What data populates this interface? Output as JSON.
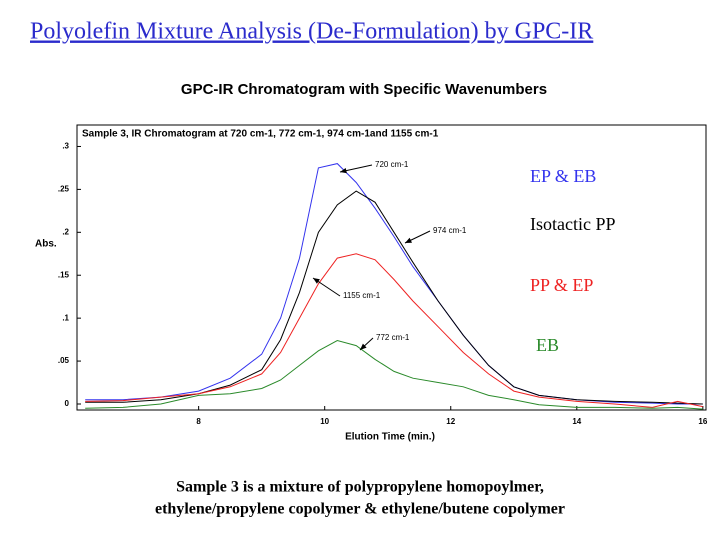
{
  "slide_title": "Polyolefin Mixture Analysis (De-Formulation) by GPC-IR",
  "caption": [
    "Sample 3 is a mixture of polypropylene homopoylmer,",
    "ethylene/propylene copolymer & ethylene/butene copolymer"
  ],
  "chart_data": {
    "type": "line",
    "title": "GPC-IR Chromatogram with Specific Wavenumbers",
    "subtitle": "Sample 3, IR Chromatogram at 720 cm-1, 772 cm-1, 974 cm-1and 1155 cm-1",
    "x_label": "Elution Time (min.)",
    "y_label": "Abs.",
    "x": [
      6.2,
      6.8,
      7.4,
      8,
      8.5,
      9,
      9.3,
      9.6,
      9.9,
      10.2,
      10.5,
      10.8,
      11.1,
      11.4,
      11.8,
      12.2,
      12.6,
      13,
      13.4,
      14,
      14.6,
      15.2,
      15.6,
      16
    ],
    "series": [
      {
        "name": "EP & EB",
        "color": "#3333ee",
        "values": [
          0.005,
          0.005,
          0.008,
          0.015,
          0.03,
          0.058,
          0.1,
          0.17,
          0.275,
          0.28,
          0.258,
          0.228,
          0.195,
          0.16,
          0.12,
          0.08,
          0.045,
          0.02,
          0.01,
          0.005,
          0.002,
          0.001,
          0,
          0
        ]
      },
      {
        "name": "Isotactic PP",
        "color": "#000000",
        "values": [
          0.002,
          0.002,
          0.005,
          0.012,
          0.022,
          0.04,
          0.075,
          0.13,
          0.2,
          0.232,
          0.248,
          0.235,
          0.2,
          0.165,
          0.12,
          0.08,
          0.045,
          0.02,
          0.01,
          0.005,
          0.003,
          0.002,
          0.001,
          0
        ]
      },
      {
        "name": "PP & EP",
        "color": "#ee2222",
        "values": [
          0.003,
          0.004,
          0.008,
          0.012,
          0.02,
          0.035,
          0.06,
          0.1,
          0.14,
          0.17,
          0.175,
          0.168,
          0.145,
          0.12,
          0.09,
          0.06,
          0.035,
          0.015,
          0.008,
          0.003,
          0,
          -0.004,
          0.003,
          -0.003
        ]
      },
      {
        "name": "EB",
        "color": "#2a8a2a",
        "values": [
          -0.005,
          -0.004,
          0,
          0.01,
          0.012,
          0.018,
          0.028,
          0.045,
          0.062,
          0.074,
          0.068,
          0.052,
          0.038,
          0.03,
          0.025,
          0.02,
          0.01,
          0.005,
          -0.001,
          -0.004,
          -0.004,
          -0.005,
          -0.004,
          -0.006
        ]
      }
    ],
    "annotations": [
      "720 cm-1",
      "974 cm-1",
      "1155 cm-1",
      "772 cm-1"
    ],
    "xlim": [
      6.07,
      16.05
    ],
    "xticks": [
      8,
      10,
      12,
      14,
      16
    ],
    "ylim": [
      -0.007,
      0.325
    ],
    "yticks": [
      0,
      {
        "value": 0.05,
        "label": ".05"
      },
      {
        "value": 0.1,
        "label": ".1"
      },
      {
        "value": 0.15,
        "label": ".15"
      },
      {
        "value": 0.2,
        "label": ".2"
      },
      {
        "value": 0.25,
        "label": ".25"
      },
      {
        "value": 0.3,
        "label": ".3"
      }
    ],
    "grid": false
  }
}
